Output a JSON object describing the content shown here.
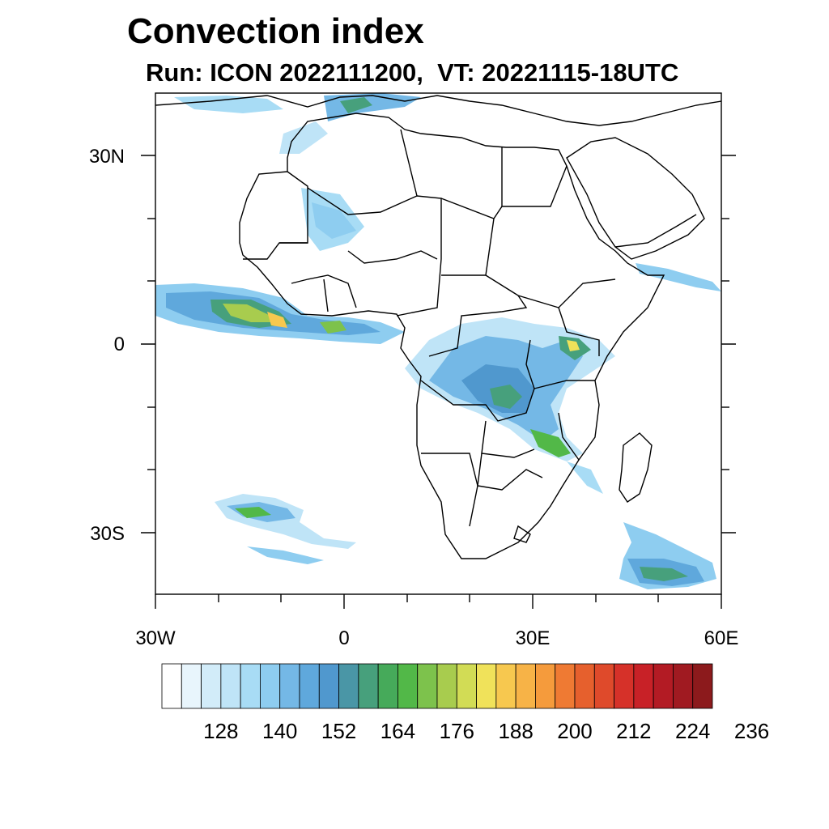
{
  "title": "Convection index",
  "subtitle": "Run: ICON 2022111200,  VT: 20221115-18UTC",
  "map": {
    "lat_labels": [
      "30N",
      "0",
      "30S"
    ],
    "lon_labels": [
      "30W",
      "0",
      "30E",
      "60E"
    ],
    "lat_range": [
      -40,
      40
    ],
    "lon_range": [
      -30,
      60
    ]
  },
  "colorbar": {
    "labels": [
      "128",
      "140",
      "152",
      "164",
      "176",
      "188",
      "200",
      "212",
      "224",
      "236"
    ],
    "colors": [
      "#ffffff",
      "#e8f5fc",
      "#d2ecf9",
      "#bfe4f7",
      "#a8dcf5",
      "#8ecdf0",
      "#74b8e6",
      "#5fa8dc",
      "#5098ce",
      "#4a96a6",
      "#47a07c",
      "#46aa5a",
      "#52b848",
      "#7dc24c",
      "#a8cc4e",
      "#d2dc55",
      "#f0e25a",
      "#f7c84f",
      "#f7b347",
      "#f59b3c",
      "#ef7a33",
      "#e6602d",
      "#df4a2b",
      "#d63129",
      "#c82127",
      "#b31b24",
      "#a01a21",
      "#8c1a1c"
    ]
  },
  "legend_note": ""
}
